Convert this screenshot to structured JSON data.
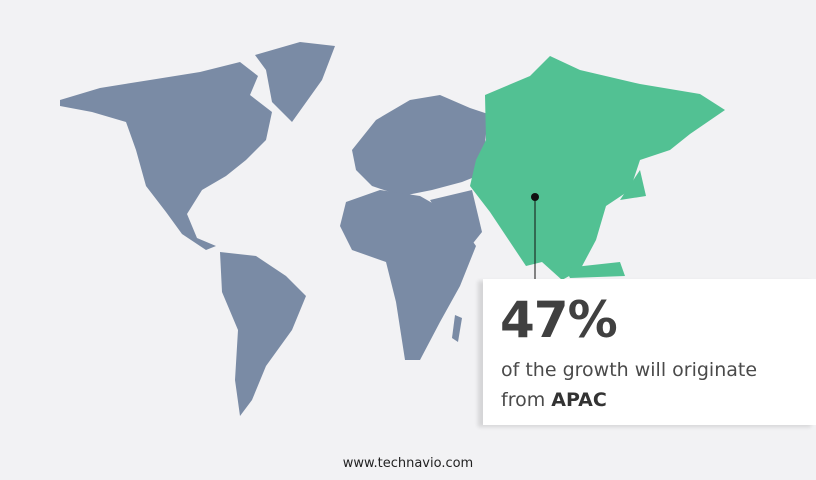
{
  "colors": {
    "background": "#f2f2f4",
    "land": "#7a8ba5",
    "highlight": "#52c193",
    "text": "#404040"
  },
  "highlight_region": "APAC",
  "callout": {
    "value": "47%",
    "text": "of the growth will originate",
    "prefix": "from",
    "region": "APAC"
  },
  "footer": {
    "url": "www.technavio.com"
  }
}
